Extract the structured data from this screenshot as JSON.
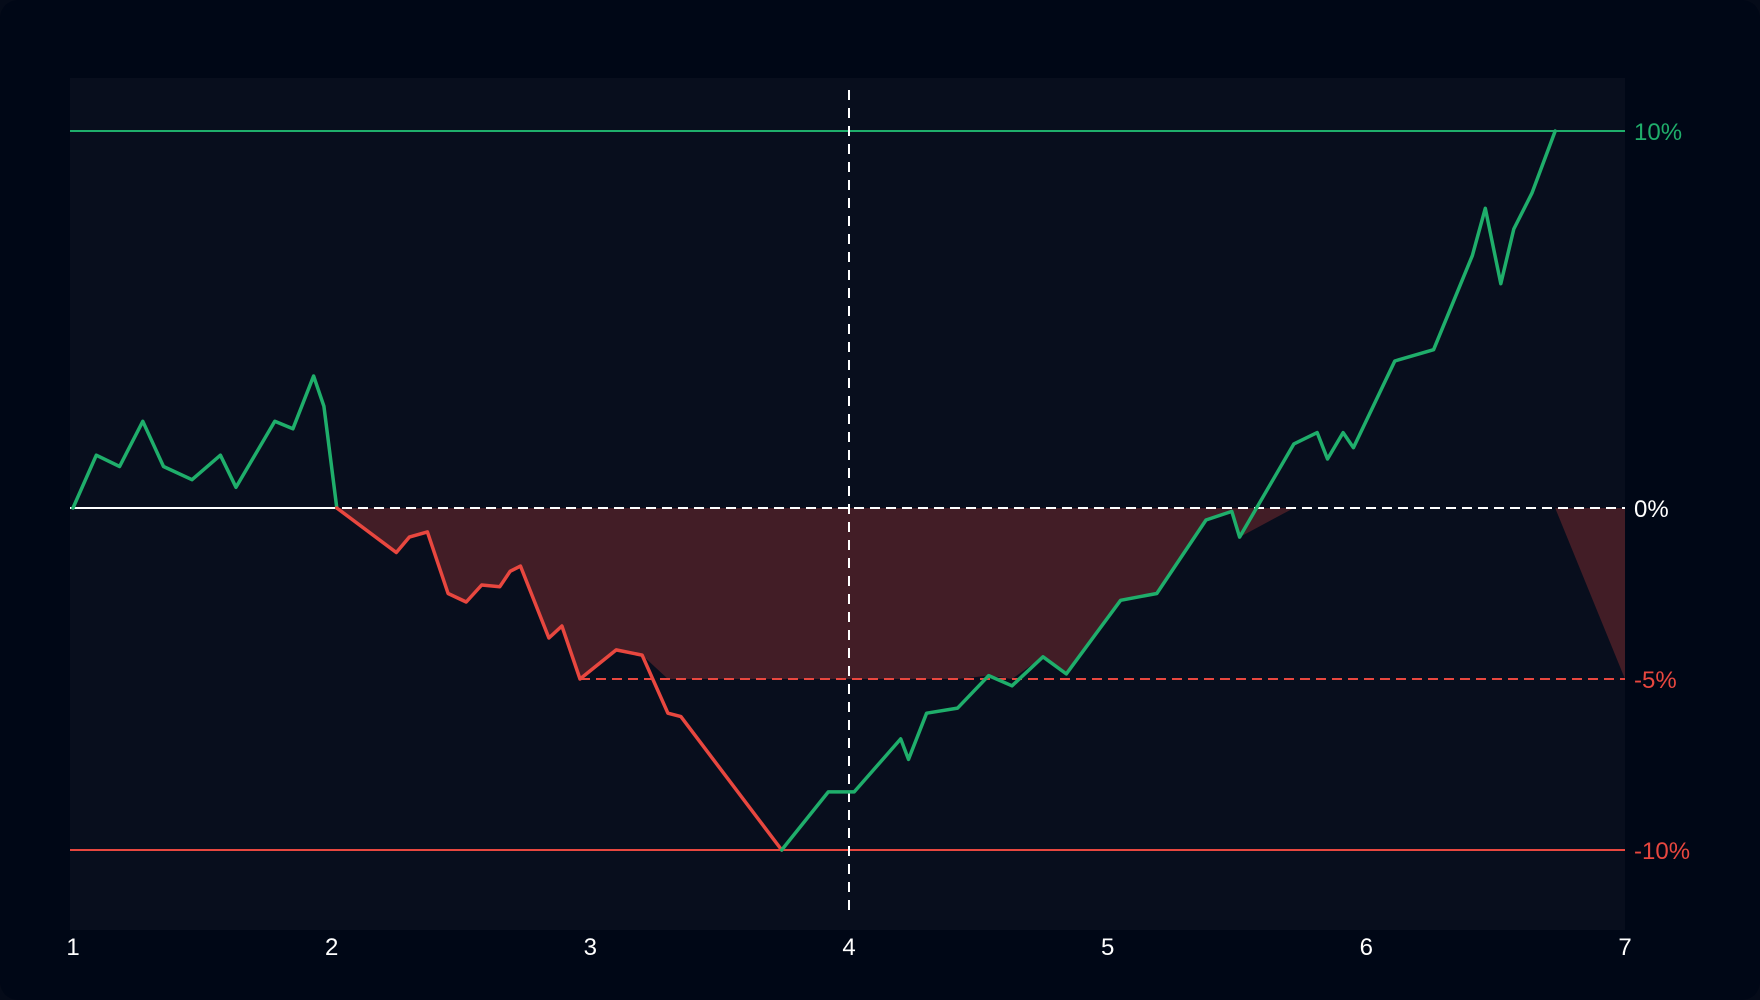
{
  "colors": {
    "background": "#000716",
    "plot_bg": "#080e1d",
    "profit": "#1fae6b",
    "loss": "#e8473f",
    "neutral": "#ffffff",
    "loss_zone": "#421d26"
  },
  "chart_data": {
    "type": "line",
    "title": "",
    "xlabel": "",
    "ylabel": "",
    "xlim": [
      1,
      7
    ],
    "ylim": [
      -11.2,
      11.6
    ],
    "x_ticks": [
      "1",
      "2",
      "3",
      "4",
      "5",
      "6",
      "7"
    ],
    "y_levels": [
      {
        "value": 10,
        "label": "10%",
        "style": "solid",
        "color": "profit"
      },
      {
        "value": 0,
        "label": "0%",
        "style": "dashed",
        "color": "neutral"
      },
      {
        "value": -5,
        "label": "-5%",
        "style": "dashed",
        "color": "loss"
      },
      {
        "value": -10,
        "label": "-10%",
        "style": "solid",
        "color": "loss"
      }
    ],
    "shaded_band": {
      "from": 0,
      "to": -5
    },
    "vertical_marker": {
      "x": 4,
      "style": "dashed"
    },
    "series": [
      {
        "segment": "gain",
        "color": "profit",
        "points": [
          [
            1.0,
            0
          ],
          [
            1.09,
            1.4
          ],
          [
            1.18,
            1.1
          ],
          [
            1.27,
            2.3
          ],
          [
            1.35,
            1.1
          ],
          [
            1.46,
            0.75
          ],
          [
            1.57,
            1.4
          ],
          [
            1.63,
            0.55
          ],
          [
            1.78,
            2.3
          ],
          [
            1.85,
            2.1
          ],
          [
            1.93,
            3.5
          ],
          [
            1.97,
            2.7
          ],
          [
            2.02,
            0
          ]
        ]
      },
      {
        "segment": "drawdown",
        "color": "loss",
        "points": [
          [
            2.02,
            0
          ],
          [
            2.25,
            -1.3
          ],
          [
            2.3,
            -0.85
          ],
          [
            2.37,
            -0.7
          ],
          [
            2.45,
            -2.5
          ],
          [
            2.52,
            -2.75
          ],
          [
            2.58,
            -2.25
          ],
          [
            2.65,
            -2.3
          ],
          [
            2.69,
            -1.85
          ],
          [
            2.73,
            -1.7
          ],
          [
            2.84,
            -3.8
          ],
          [
            2.89,
            -3.45
          ],
          [
            2.96,
            -5.0
          ],
          [
            3.1,
            -4.15
          ],
          [
            3.2,
            -4.3
          ],
          [
            3.3,
            -6.0
          ],
          [
            3.35,
            -6.1
          ],
          [
            3.74,
            -10.0
          ]
        ]
      },
      {
        "segment": "recovery",
        "color": "profit",
        "points": [
          [
            3.74,
            -10.0
          ],
          [
            3.92,
            -8.3
          ],
          [
            4.02,
            -8.3
          ],
          [
            4.2,
            -6.75
          ],
          [
            4.23,
            -7.35
          ],
          [
            4.3,
            -6.0
          ],
          [
            4.42,
            -5.85
          ],
          [
            4.54,
            -4.9
          ],
          [
            4.63,
            -5.2
          ],
          [
            4.75,
            -4.35
          ],
          [
            4.84,
            -4.85
          ],
          [
            5.05,
            -2.7
          ],
          [
            5.19,
            -2.5
          ],
          [
            5.38,
            -0.35
          ],
          [
            5.48,
            -0.1
          ],
          [
            5.51,
            -0.85
          ],
          [
            5.72,
            1.7
          ],
          [
            5.81,
            2.0
          ],
          [
            5.85,
            1.3
          ],
          [
            5.91,
            2.0
          ],
          [
            5.95,
            1.6
          ],
          [
            6.11,
            3.9
          ],
          [
            6.26,
            4.2
          ],
          [
            6.41,
            6.7
          ],
          [
            6.46,
            7.95
          ],
          [
            6.52,
            5.95
          ],
          [
            6.57,
            7.4
          ],
          [
            6.64,
            8.35
          ],
          [
            6.73,
            10.0
          ]
        ]
      }
    ]
  }
}
